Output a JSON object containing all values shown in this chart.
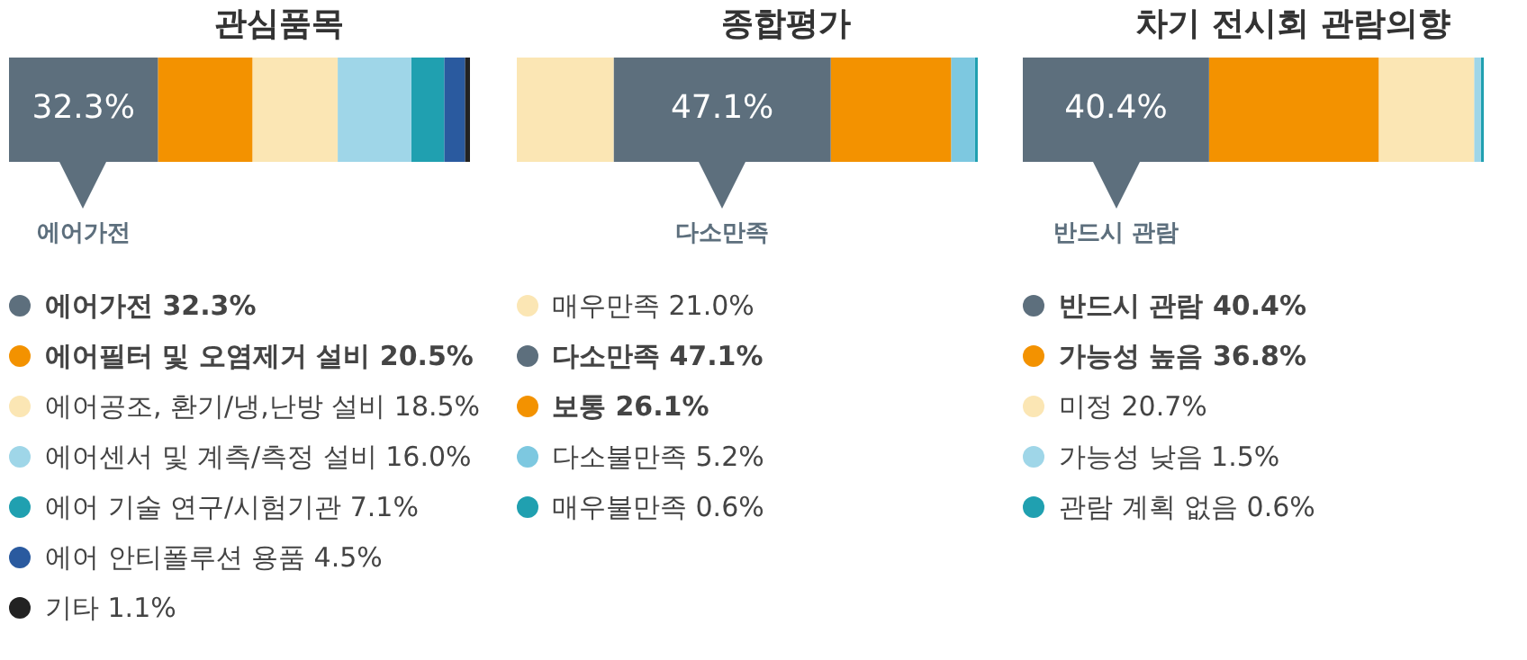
{
  "chart_data": [
    {
      "type": "bar",
      "title": "관심품목",
      "orientation": "horizontal",
      "stacked": true,
      "categories": [
        null
      ],
      "xlim": [
        0,
        100
      ],
      "tick_labels": false,
      "legend": "bottom",
      "annotations": [
        "에어가전"
      ],
      "series": [
        {
          "name": "에어가전 32.3%",
          "color": "#5d6f7d",
          "values": [
            32.3
          ],
          "value_labels": [
            "32.3%"
          ]
        },
        {
          "name": "에어필터 및 오염제거 설비 20.5%",
          "color": "#f39200",
          "values": [
            20.5
          ]
        },
        {
          "name": "에어공조, 환기/냉,난방 설비 18.5%",
          "color": "#fbe6b4",
          "values": [
            18.5
          ]
        },
        {
          "name": "에어센서 및 계측/측정 설비 16.0%",
          "color": "#9fd6e8",
          "values": [
            16.0
          ]
        },
        {
          "name": "에어 기술 연구/시험기관 7.1%",
          "color": "#20a0b0",
          "values": [
            7.1
          ]
        },
        {
          "name": "에어 안티폴루션 용품 4.5%",
          "color": "#2a5a9f",
          "values": [
            4.5
          ]
        },
        {
          "name": "기타 1.1%",
          "color": "#222222",
          "values": [
            1.1
          ]
        }
      ]
    },
    {
      "type": "bar",
      "title": "종합평가",
      "orientation": "horizontal",
      "stacked": true,
      "categories": [
        null
      ],
      "xlim": [
        0,
        100
      ],
      "tick_labels": false,
      "legend": "bottom",
      "annotations": [
        "다소만족"
      ],
      "series": [
        {
          "name": "매우만족 21.0%",
          "color": "#fbe6b4",
          "values": [
            21.0
          ]
        },
        {
          "name": "다소만족 47.1%",
          "color": "#5d6f7d",
          "values": [
            47.1
          ],
          "value_labels": [
            "47.1%"
          ]
        },
        {
          "name": "보통 26.1%",
          "color": "#f39200",
          "values": [
            26.1
          ]
        },
        {
          "name": "다소불만족 5.2%",
          "color": "#7dc8e0",
          "values": [
            5.2
          ]
        },
        {
          "name": "매우불만족 0.6%",
          "color": "#20a0b0",
          "values": [
            0.6
          ]
        }
      ]
    },
    {
      "type": "bar",
      "title": "차기 전시회 관람의향",
      "orientation": "horizontal",
      "stacked": true,
      "categories": [
        null
      ],
      "xlim": [
        0,
        100
      ],
      "tick_labels": false,
      "legend": "bottom",
      "annotations": [
        "반드시 관람"
      ],
      "series": [
        {
          "name": "반드시 관람 40.4%",
          "color": "#5d6f7d",
          "values": [
            40.4
          ],
          "value_labels": [
            "40.4%"
          ]
        },
        {
          "name": "가능성 높음 36.8%",
          "color": "#f39200",
          "values": [
            36.8
          ]
        },
        {
          "name": "미정 20.7%",
          "color": "#fbe6b4",
          "values": [
            20.7
          ]
        },
        {
          "name": "가능성 낮음 1.5%",
          "color": "#9fd6e8",
          "values": [
            1.5
          ]
        },
        {
          "name": "관람 계획 없음 0.6%",
          "color": "#20a0b0",
          "values": [
            0.6
          ]
        }
      ]
    }
  ]
}
